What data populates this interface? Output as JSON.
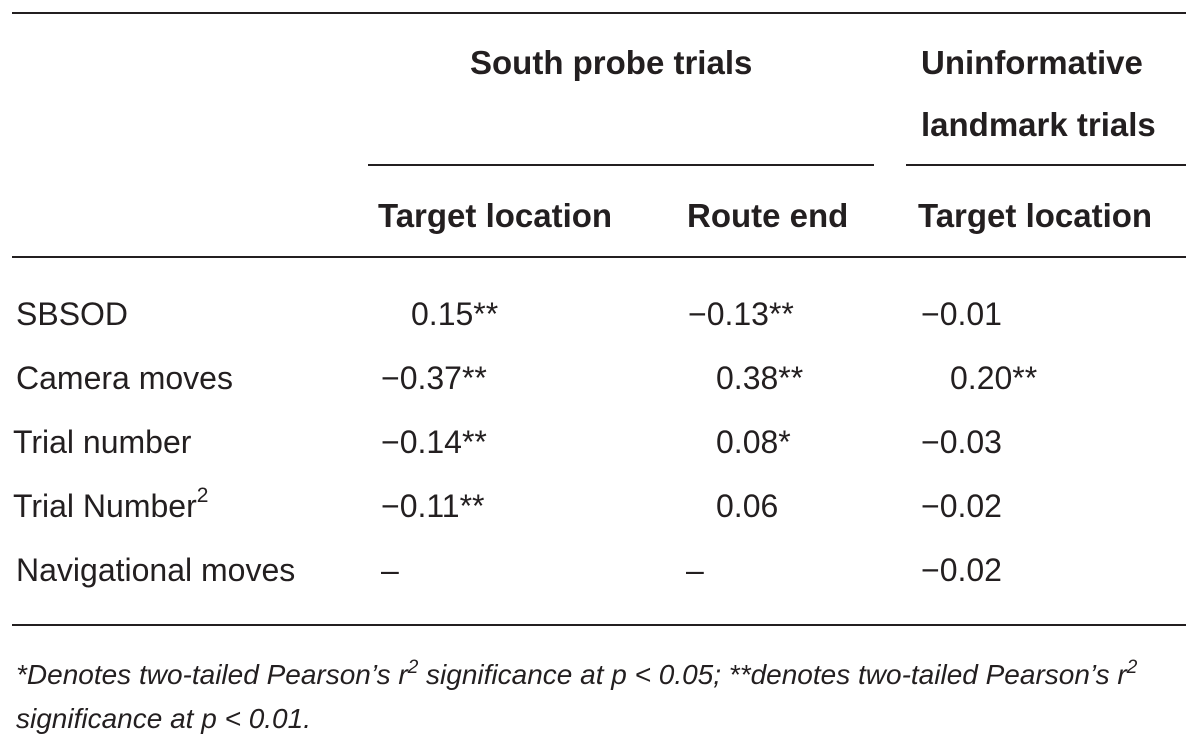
{
  "table": {
    "group_headers": {
      "south": "South probe trials",
      "uninformative_line1": "Uninformative",
      "uninformative_line2": "landmark trials"
    },
    "sub_headers": [
      "Target location",
      "Route end",
      "Target location"
    ],
    "rows": [
      {
        "label": "SBSOD",
        "label_sup": "",
        "values": [
          "0.15**",
          "−0.13**",
          "−0.01"
        ]
      },
      {
        "label": "Camera moves",
        "label_sup": "",
        "values": [
          "−0.37**",
          "0.38**",
          "0.20**"
        ]
      },
      {
        "label": "Trial number",
        "label_sup": "",
        "values": [
          "−0.14**",
          "0.08*",
          "−0.03"
        ]
      },
      {
        "label": "Trial Number",
        "label_sup": "2",
        "values": [
          "−0.11**",
          "0.06",
          "−0.02"
        ]
      },
      {
        "label": "Navigational moves",
        "label_sup": "",
        "values": [
          "–",
          "–",
          "−0.02"
        ]
      }
    ],
    "footnote": {
      "part1": "*Denotes two-tailed Pearson’s r",
      "sup1": "2",
      "part2": " significance at p < 0.05; **denotes two-tailed Pearson’s r",
      "sup2": "2",
      "part3": " significance at p < 0.01."
    }
  }
}
